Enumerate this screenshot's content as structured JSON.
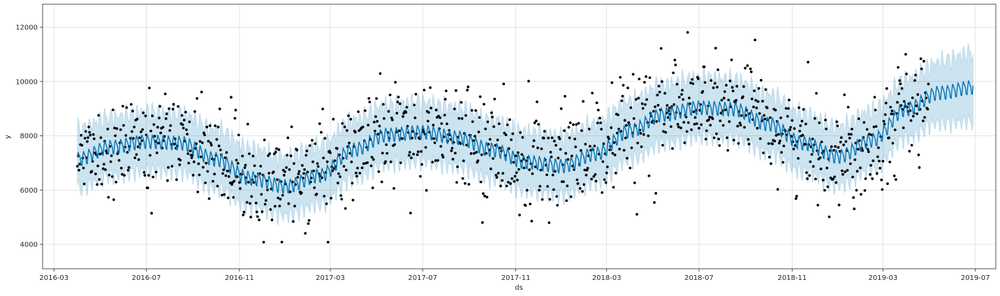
{
  "chart_data": {
    "type": "line",
    "title": "",
    "xlabel": "ds",
    "ylabel": "y",
    "x_range": [
      "2016-02-15",
      "2019-07-28"
    ],
    "y_range": [
      3100,
      12850
    ],
    "grid": true,
    "legend": "none",
    "x_ticks": [
      "2016-03",
      "2016-07",
      "2016-11",
      "2017-03",
      "2017-07",
      "2017-11",
      "2018-03",
      "2018-07",
      "2018-11",
      "2019-03",
      "2019-07"
    ],
    "y_ticks": [
      4000,
      6000,
      8000,
      10000,
      12000
    ],
    "history_end": "2019-04-30",
    "forecast_end": "2019-06-28",
    "colors": {
      "forecast_line": "#0072B2",
      "uncertainty_band": "#0072B2",
      "observed_points": "#000000"
    },
    "series": [
      {
        "kind": "forecast_yhat",
        "points": [
          [
            "2016-04-01",
            7150
          ],
          [
            "2016-05-15",
            7600
          ],
          [
            "2016-07-01",
            7800
          ],
          [
            "2016-08-15",
            7750
          ],
          [
            "2016-10-01",
            7150
          ],
          [
            "2016-11-15",
            6450
          ],
          [
            "2017-01-01",
            6150
          ],
          [
            "2017-02-15",
            6550
          ],
          [
            "2017-04-01",
            7500
          ],
          [
            "2017-05-15",
            8050
          ],
          [
            "2017-07-01",
            8150
          ],
          [
            "2017-08-15",
            7950
          ],
          [
            "2017-10-01",
            7500
          ],
          [
            "2017-11-15",
            7050
          ],
          [
            "2018-01-01",
            6900
          ],
          [
            "2018-02-15",
            7350
          ],
          [
            "2018-04-01",
            8200
          ],
          [
            "2018-05-15",
            8800
          ],
          [
            "2018-07-01",
            9050
          ],
          [
            "2018-08-15",
            9000
          ],
          [
            "2018-10-01",
            8450
          ],
          [
            "2018-11-15",
            7750
          ],
          [
            "2019-01-01",
            7250
          ],
          [
            "2019-02-15",
            7850
          ],
          [
            "2019-04-01",
            9000
          ],
          [
            "2019-05-15",
            9600
          ],
          [
            "2019-06-28",
            9800
          ]
        ],
        "weekly_amplitude": 650,
        "band_width": [
          2200,
          2600
        ]
      },
      {
        "kind": "observed_y",
        "description_stats": {
          "min": 4080,
          "max": 11850,
          "noise_sd": 1100
        }
      }
    ]
  }
}
